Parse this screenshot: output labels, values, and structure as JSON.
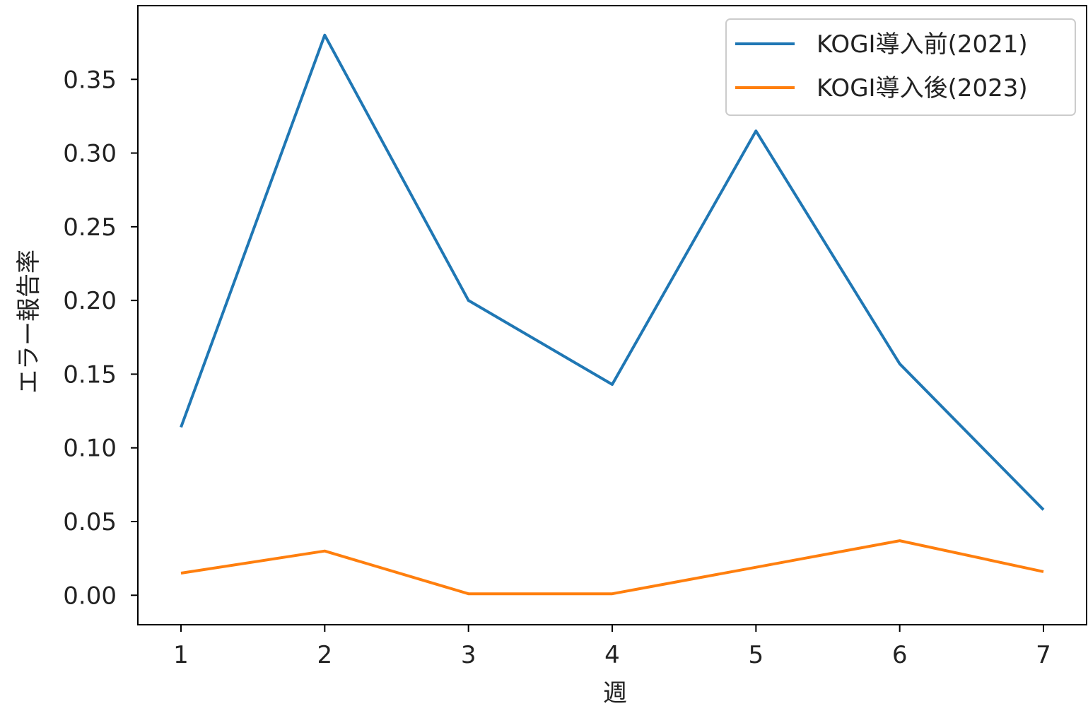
{
  "chart_data": {
    "type": "line",
    "xlabel": "週",
    "ylabel": "エラー報告率",
    "categories": [
      "1",
      "2",
      "3",
      "4",
      "5",
      "6",
      "7"
    ],
    "x": [
      1,
      2,
      3,
      4,
      5,
      6,
      7
    ],
    "xlim": [
      0.7,
      7.3
    ],
    "ylim": [
      -0.02,
      0.4
    ],
    "yticks": [
      0.0,
      0.05,
      0.1,
      0.15,
      0.2,
      0.25,
      0.3,
      0.35
    ],
    "ytick_labels": [
      "0.00",
      "0.05",
      "0.10",
      "0.15",
      "0.20",
      "0.25",
      "0.30",
      "0.35"
    ],
    "grid": false,
    "legend_position": "top-right",
    "series": [
      {
        "name": "KOGI導入前(2021)",
        "color": "#1f77b4",
        "values": [
          0.114,
          0.38,
          0.2,
          0.143,
          0.315,
          0.157,
          0.058
        ]
      },
      {
        "name": "KOGI導入後(2023)",
        "color": "#ff7f0e",
        "values": [
          0.015,
          0.03,
          0.001,
          0.001,
          0.019,
          0.037,
          0.016
        ]
      }
    ]
  }
}
